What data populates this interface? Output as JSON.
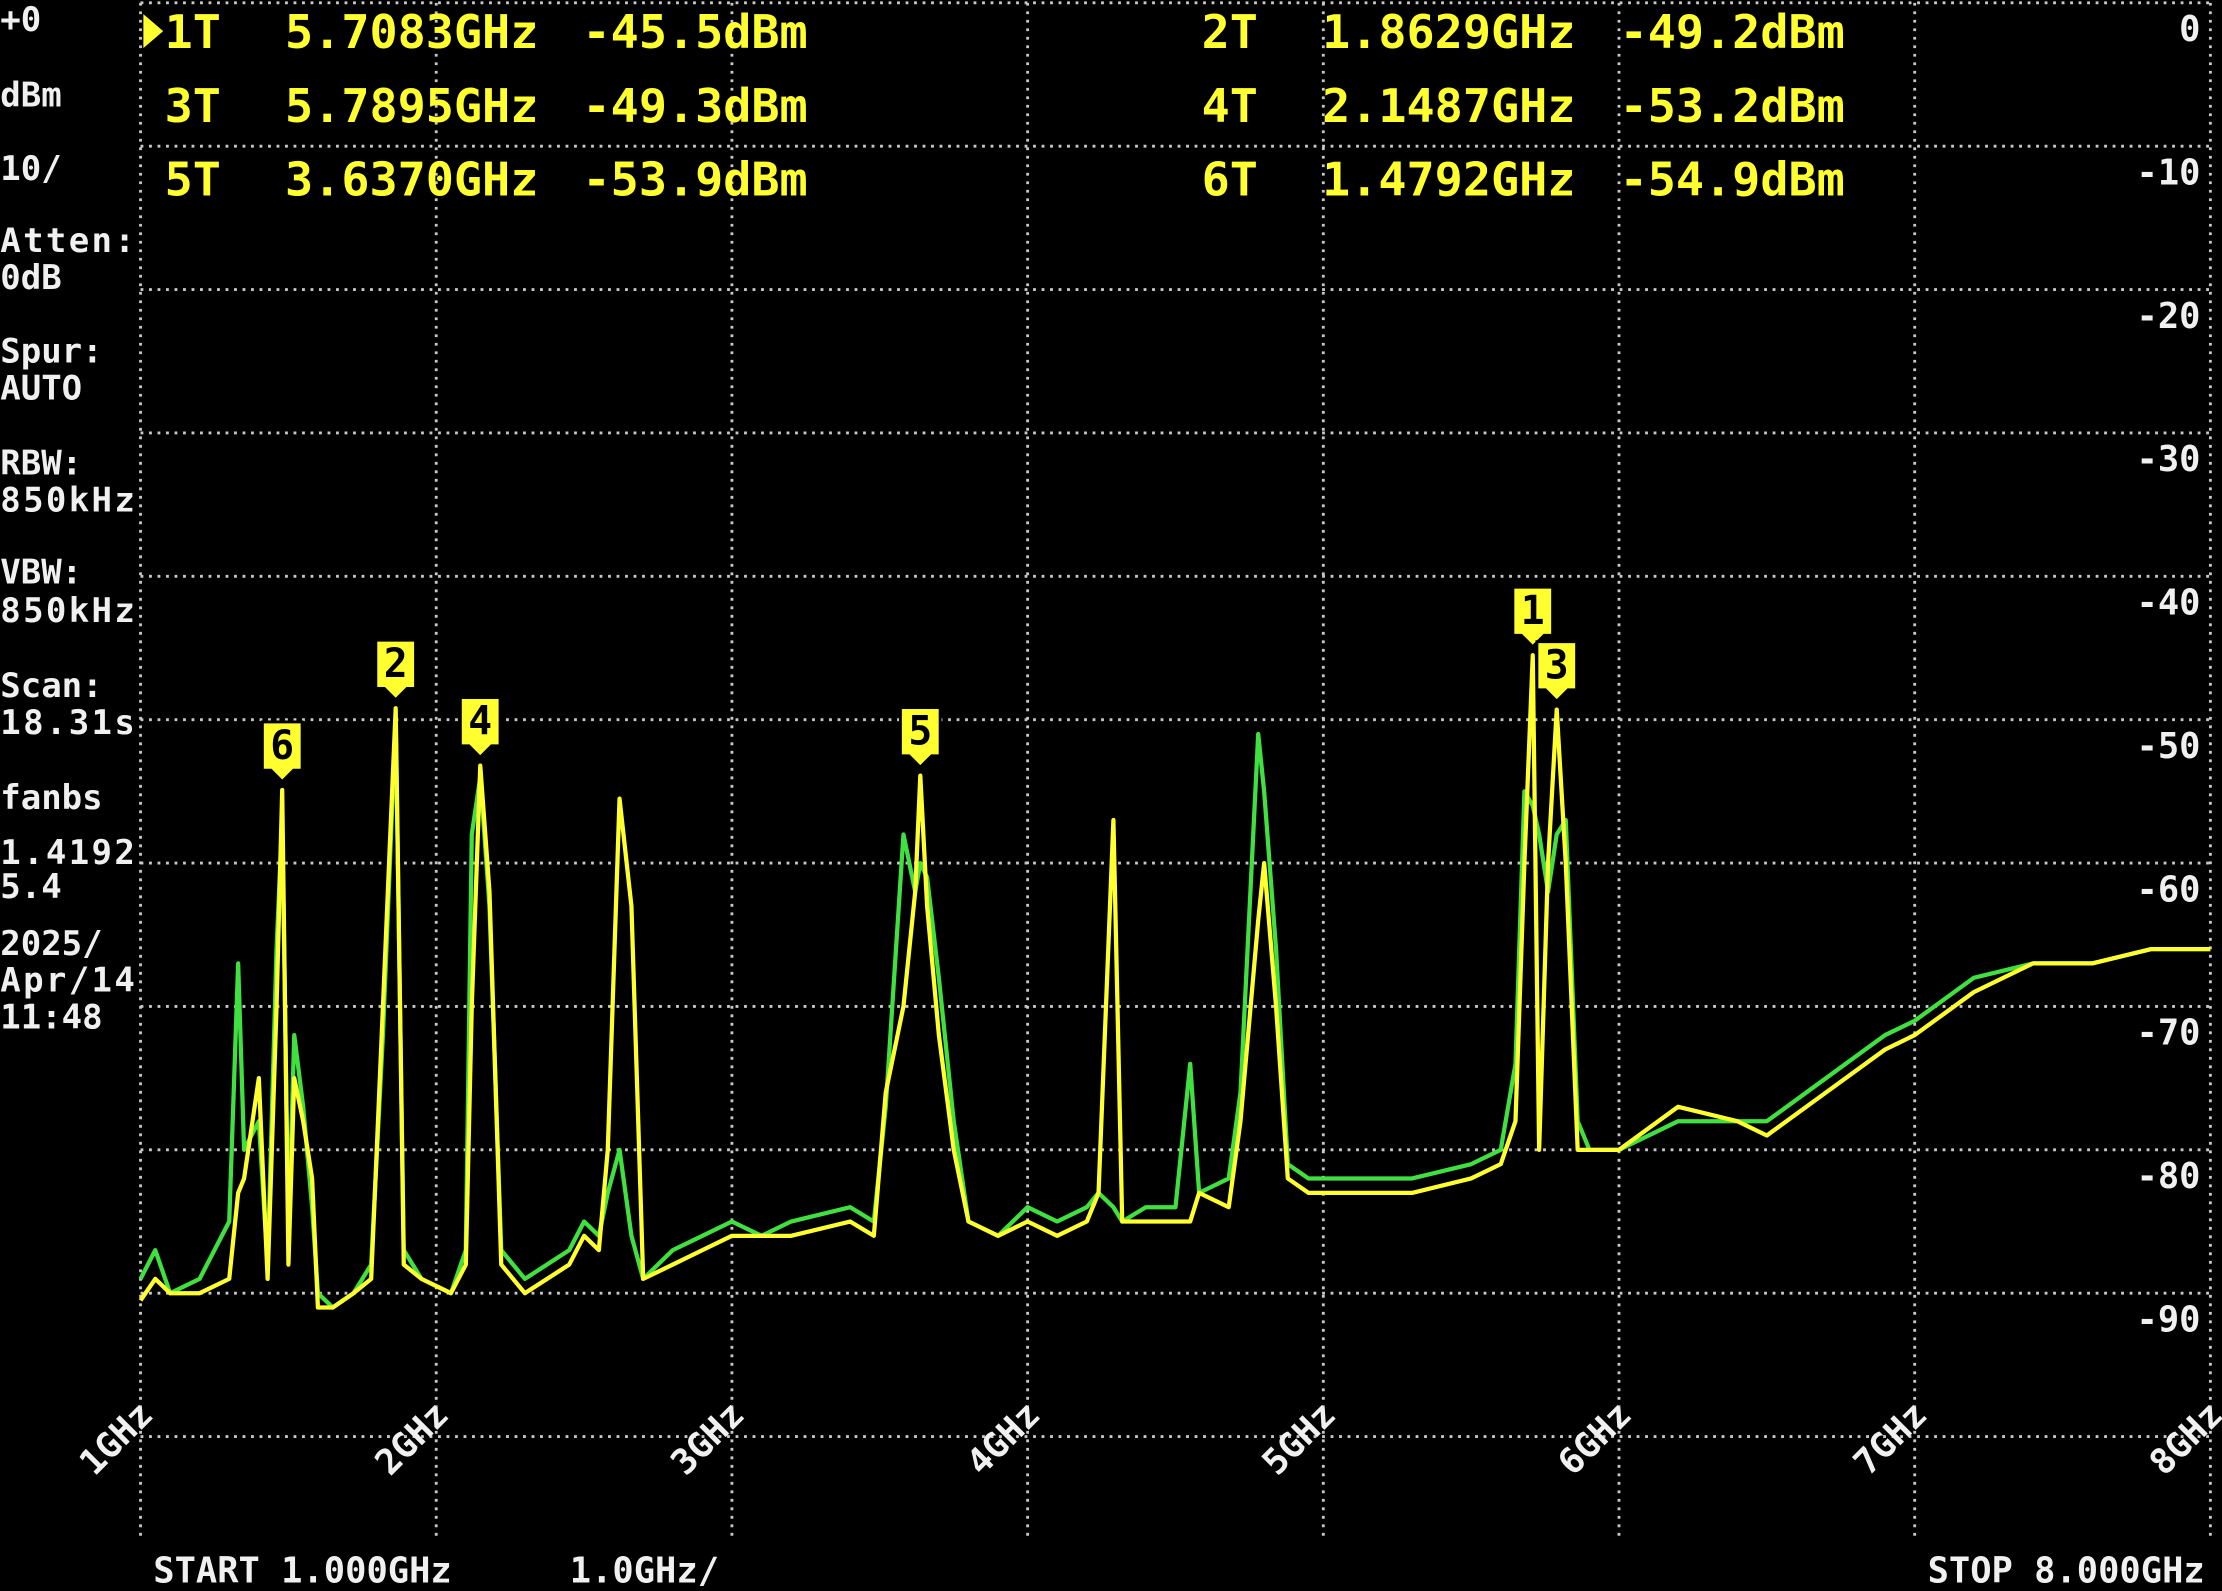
{
  "chart_data": {
    "type": "line",
    "ylim": [
      -100,
      0
    ],
    "yticks": [
      0,
      -10,
      -20,
      -30,
      -40,
      -50,
      -60,
      -70,
      -80,
      -90
    ],
    "xlim": [
      1,
      8
    ],
    "xticks": [
      {
        "value": 1,
        "label": "1GHz"
      },
      {
        "value": 2,
        "label": "2GHz"
      },
      {
        "value": 3,
        "label": "3GHz"
      },
      {
        "value": 4,
        "label": "4GHz"
      },
      {
        "value": 5,
        "label": "5GHz"
      },
      {
        "value": 6,
        "label": "6GHz"
      },
      {
        "value": 7,
        "label": "7GHz"
      },
      {
        "value": 8,
        "label": "8GHz"
      }
    ],
    "grid": true,
    "x": [
      1.0,
      1.05,
      1.1,
      1.2,
      1.3,
      1.33,
      1.35,
      1.4,
      1.43,
      1.46,
      1.4792,
      1.5,
      1.52,
      1.55,
      1.58,
      1.6,
      1.65,
      1.72,
      1.78,
      1.82,
      1.8629,
      1.89,
      1.95,
      2.05,
      2.1,
      2.12,
      2.1487,
      2.18,
      2.22,
      2.3,
      2.45,
      2.5,
      2.55,
      2.58,
      2.62,
      2.66,
      2.7,
      2.8,
      2.9,
      3.0,
      3.1,
      3.2,
      3.4,
      3.48,
      3.52,
      3.58,
      3.62,
      3.637,
      3.66,
      3.7,
      3.75,
      3.8,
      3.9,
      4.0,
      4.1,
      4.2,
      4.24,
      4.29,
      4.32,
      4.4,
      4.5,
      4.55,
      4.58,
      4.68,
      4.72,
      4.78,
      4.8,
      4.84,
      4.88,
      4.95,
      5.1,
      5.3,
      5.5,
      5.6,
      5.65,
      5.68,
      5.7083,
      5.73,
      5.76,
      5.7895,
      5.82,
      5.86,
      5.9,
      6.0,
      6.2,
      6.4,
      6.5,
      6.7,
      6.9,
      7.0,
      7.2,
      7.4,
      7.6,
      7.8,
      8.0
    ],
    "series": [
      {
        "name": "trace-green",
        "color": "#40e040",
        "values": [
          -89,
          -87,
          -90,
          -89,
          -85,
          -67,
          -80,
          -78,
          -88,
          -66,
          -57,
          -86,
          -72,
          -77,
          -84,
          -90,
          -91,
          -90,
          -88,
          -72,
          -50,
          -87,
          -89,
          -90,
          -87,
          -58,
          -54,
          -63,
          -87,
          -89,
          -87,
          -85,
          -86,
          -83,
          -80,
          -86,
          -89,
          -87,
          -86,
          -85,
          -86,
          -85,
          -84,
          -85,
          -77,
          -58,
          -62,
          -60,
          -61,
          -68,
          -78,
          -85,
          -86,
          -84,
          -85,
          -84,
          -83,
          -84,
          -85,
          -84,
          -84,
          -74,
          -83,
          -82,
          -76,
          -51,
          -55,
          -66,
          -81,
          -82,
          -82,
          -82,
          -81,
          -80,
          -74,
          -55,
          -56,
          -58,
          -62,
          -58,
          -57,
          -78,
          -80,
          -80,
          -78,
          -78,
          -78,
          -75,
          -72,
          -71,
          -68,
          -67,
          -67,
          -66,
          -66
        ]
      },
      {
        "name": "trace-yellow",
        "color": "#ffff30",
        "values": [
          -90.5,
          -89,
          -90,
          -90,
          -89,
          -83,
          -82,
          -75,
          -89,
          -70,
          -54.9,
          -88,
          -75,
          -78,
          -82,
          -91,
          -91,
          -90,
          -89,
          -70,
          -49.2,
          -88,
          -89,
          -90,
          -88,
          -70,
          -53.2,
          -62,
          -88,
          -90,
          -88,
          -86,
          -87,
          -80,
          -55.5,
          -63,
          -89,
          -88,
          -87,
          -86,
          -86,
          -86,
          -85,
          -86,
          -76,
          -70,
          -62,
          -53.9,
          -63,
          -72,
          -80,
          -85,
          -86,
          -85,
          -86,
          -85,
          -83,
          -57,
          -85,
          -85,
          -85,
          -85,
          -83,
          -84,
          -78,
          -64,
          -60,
          -70,
          -82,
          -83,
          -83,
          -83,
          -82,
          -81,
          -78,
          -60,
          -45.5,
          -80,
          -60,
          -49.3,
          -60,
          -80,
          -80,
          -80,
          -77,
          -78,
          -79,
          -76,
          -73,
          -72,
          -69,
          -67,
          -67,
          -66,
          -66
        ]
      }
    ],
    "markers": [
      {
        "id": "1",
        "name": "1T",
        "x": 5.7083,
        "x_label": "5.7083GHz",
        "y": -45.5,
        "y_label": "-45.5dBm"
      },
      {
        "id": "2",
        "name": "2T",
        "x": 1.8629,
        "x_label": "1.8629GHz",
        "y": -49.2,
        "y_label": "-49.2dBm"
      },
      {
        "id": "3",
        "name": "3T",
        "x": 5.7895,
        "x_label": "5.7895GHz",
        "y": -49.3,
        "y_label": "-49.3dBm"
      },
      {
        "id": "4",
        "name": "4T",
        "x": 2.1487,
        "x_label": "2.1487GHz",
        "y": -53.2,
        "y_label": "-53.2dBm"
      },
      {
        "id": "5",
        "name": "5T",
        "x": 3.637,
        "x_label": "3.6370GHz",
        "y": -53.9,
        "y_label": "-53.9dBm"
      },
      {
        "id": "6",
        "name": "6T",
        "x": 1.4792,
        "x_label": "1.4792GHz",
        "y": -54.9,
        "y_label": "-54.9dBm"
      }
    ],
    "status_lines": [
      "+0",
      "dBm",
      "10/",
      "Atten:",
      "0dB",
      "Spur:",
      "AUTO",
      "RBW:",
      "850kHz",
      "VBW:",
      "850kHz",
      "Scan:",
      "18.31s",
      "fanbs",
      "1.4192",
      "5.4",
      "2025/",
      "Apr/14",
      "11:48"
    ],
    "start_label": "START 1.000GHz",
    "span_label": "1.0GHz/",
    "stop_label": "STOP 8.000GHz"
  }
}
